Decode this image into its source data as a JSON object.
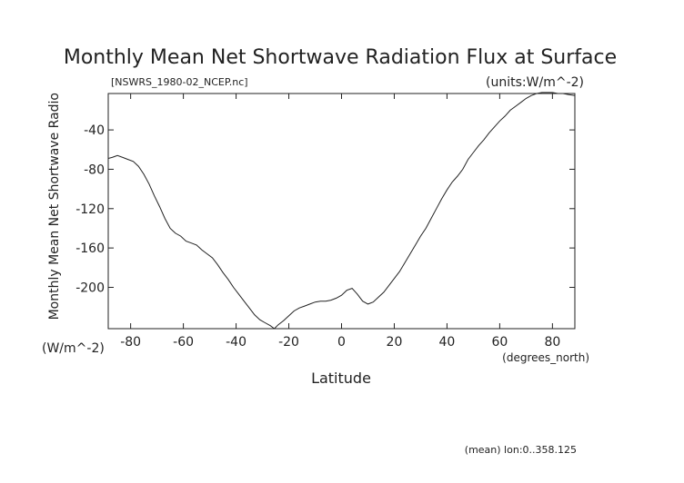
{
  "chart_data": {
    "type": "line",
    "title": "Monthly Mean Net Shortwave Radiation Flux at Surface",
    "file_label": "[NSWRS_1980-02_NCEP.nc]",
    "units_label": "(units:W/m^-2)",
    "ylabel": "Monthly Mean Net Shortwave Radio",
    "ylabel_units": "(W/m^-2)",
    "xlabel": "Latitude",
    "xlabel_units": "(degrees_north)",
    "footer": "(mean) lon:0..358.125",
    "xlim": [
      -88.5,
      88.5
    ],
    "ylim": [
      -242,
      -3
    ],
    "x_ticks": [
      -80,
      -60,
      -40,
      -20,
      0,
      20,
      40,
      60,
      80
    ],
    "y_ticks": [
      -40,
      -80,
      -120,
      -160,
      -200
    ],
    "series": [
      {
        "x": [
          -88.5,
          -87,
          -85,
          -83,
          -81,
          -79,
          -77,
          -75,
          -73,
          -71,
          -69,
          -67,
          -65,
          -63,
          -61,
          -59,
          -57,
          -55,
          -53,
          -51,
          -49,
          -47,
          -45,
          -43,
          -41,
          -39,
          -37,
          -35,
          -33,
          -31,
          -29,
          -27,
          -25.5,
          -24,
          -22,
          -20,
          -18,
          -16,
          -14,
          -12,
          -10,
          -8,
          -6,
          -4,
          -2,
          0,
          2,
          4,
          6,
          8,
          10,
          12,
          14,
          16,
          18,
          20,
          22,
          24,
          26,
          28,
          30,
          32,
          34,
          36,
          38,
          40,
          42,
          44,
          46,
          48,
          50,
          52,
          54,
          56,
          58,
          60,
          62,
          64,
          66,
          68,
          70,
          72,
          74,
          76,
          78,
          80,
          82,
          84,
          86,
          88.5
        ],
        "y": [
          -69,
          -68,
          -66,
          -68,
          -70,
          -72,
          -77,
          -85,
          -95,
          -107,
          -118,
          -130,
          -140,
          -145,
          -148,
          -153,
          -155,
          -157,
          -162,
          -166,
          -170,
          -177,
          -185,
          -192,
          -200,
          -207,
          -214,
          -221,
          -228,
          -233,
          -236,
          -239,
          -242,
          -238,
          -234,
          -229,
          -224,
          -221,
          -219,
          -217,
          -215,
          -214,
          -214,
          -213,
          -211,
          -208,
          -203,
          -201,
          -207,
          -214,
          -217,
          -215,
          -210,
          -205,
          -198,
          -191,
          -184,
          -175,
          -166,
          -157,
          -148,
          -140,
          -130,
          -120,
          -110,
          -101,
          -93,
          -87,
          -80,
          -70,
          -63,
          -56,
          -50,
          -43,
          -37,
          -31,
          -26,
          -20,
          -16,
          -12,
          -8,
          -5,
          -3,
          -2,
          -2,
          -2,
          -3,
          -3,
          -4,
          -5
        ]
      }
    ]
  }
}
